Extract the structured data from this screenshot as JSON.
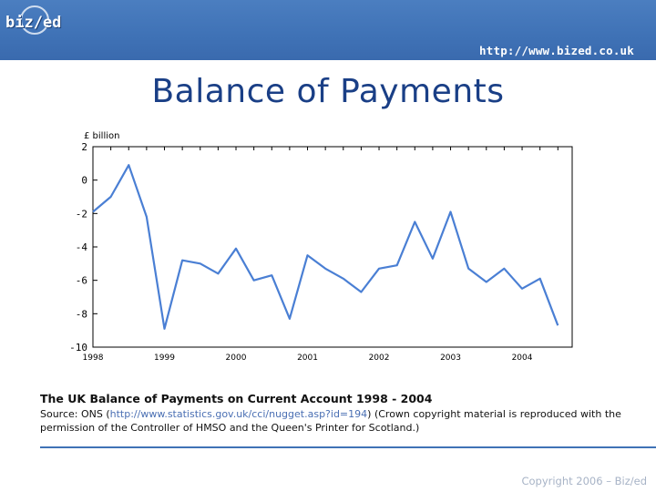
{
  "header": {
    "logo_text": "biz/ed",
    "url": "http://www.bized.co.uk"
  },
  "slide": {
    "title": "Balance of Payments"
  },
  "caption": {
    "title": "The UK Balance of Payments on Current Account 1998 - 2004",
    "source_prefix": "Source: ONS (",
    "source_link": "http://www.statistics.gov.uk/cci/nugget.asp?id=194",
    "source_suffix": ") (Crown copyright material is reproduced with the permission of the Controller of HMSO and the Queen's Printer for Scotland.)"
  },
  "footer": {
    "copyright": "Copyright 2006 – Biz/ed"
  },
  "colors": {
    "header_blue": "#3f72b6",
    "title_blue": "#1a3f86",
    "series_line": "#4a7fd4"
  },
  "chart_data": {
    "type": "line",
    "title": "",
    "ylabel": "£ billion",
    "xlabel": "",
    "ylim": [
      -10,
      2
    ],
    "yticks": [
      2,
      0,
      -2,
      -4,
      -6,
      -8,
      -10
    ],
    "xlim": [
      1998,
      2004.7
    ],
    "xtick_labels": [
      "1998",
      "1999",
      "2000",
      "2001",
      "2002",
      "2003",
      "2004"
    ],
    "x": [
      1998.0,
      1998.25,
      1998.5,
      1998.75,
      1999.0,
      1999.25,
      1999.5,
      1999.75,
      2000.0,
      2000.25,
      2000.5,
      2000.75,
      2001.0,
      2001.25,
      2001.5,
      2001.75,
      2002.0,
      2002.25,
      2002.5,
      2002.75,
      2003.0,
      2003.25,
      2003.5,
      2003.75,
      2004.0,
      2004.25,
      2004.5
    ],
    "series": [
      {
        "values": [
          -1.9,
          -1.0,
          0.9,
          -2.2,
          -8.9,
          -4.8,
          -5.0,
          -5.6,
          -4.1,
          -6.0,
          -5.7,
          -8.3,
          -4.5,
          -5.3,
          -5.9,
          -6.7,
          -5.3,
          -5.1,
          -2.5,
          -4.7,
          -1.9,
          -5.3,
          -6.1,
          -5.3,
          -6.5,
          -5.9,
          -8.7
        ]
      }
    ],
    "grid": false,
    "legend": "none"
  }
}
